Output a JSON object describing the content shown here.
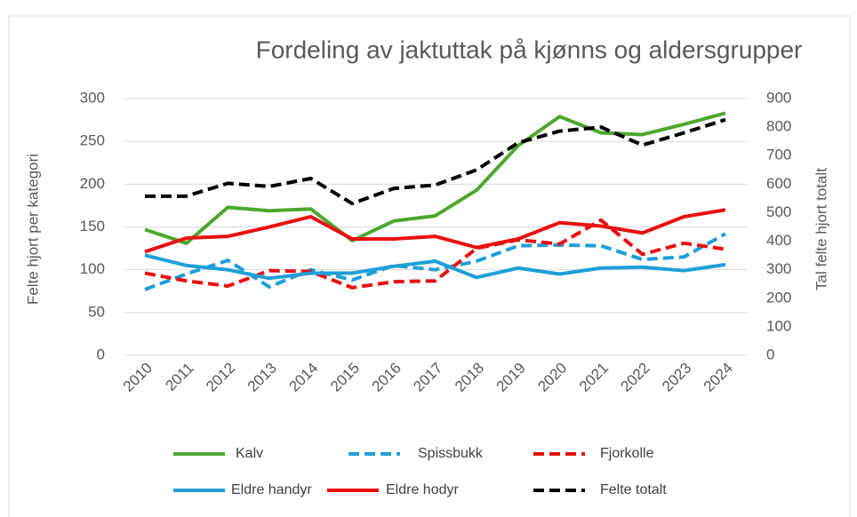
{
  "chart_data": {
    "type": "line",
    "title": "Fordeling av jaktuttak på kjønns og aldersgrupper",
    "y_label": "Felte hjort per kategori",
    "y2_label": "Tal felte hjort totalt",
    "categories": [
      "2010",
      "2011",
      "2012",
      "2013",
      "2014",
      "2015",
      "2016",
      "2017",
      "2018",
      "2019",
      "2020",
      "2021",
      "2022",
      "2023",
      "2024"
    ],
    "ylim": [
      0,
      300
    ],
    "yticks": [
      0,
      50,
      100,
      150,
      200,
      250,
      300
    ],
    "y2lim": [
      0,
      900
    ],
    "y2ticks": [
      0,
      100,
      200,
      300,
      400,
      500,
      600,
      700,
      800,
      900
    ],
    "grid": true,
    "legend": "bottom",
    "series": [
      {
        "name": "Kalv",
        "color": "#4ea72e",
        "dash": false,
        "values": [
          147,
          131,
          173,
          169,
          171,
          134,
          157,
          163,
          193,
          245,
          279,
          260,
          258,
          270,
          283
        ]
      },
      {
        "name": "Spissbukk",
        "color": "#1e9fd8",
        "dash": true,
        "values": [
          77,
          95,
          111,
          80,
          100,
          88,
          105,
          100,
          110,
          128,
          129,
          128,
          112,
          115,
          142
        ]
      },
      {
        "name": "Fjorkolle",
        "color": "#e81010",
        "dash": true,
        "values": [
          96,
          87,
          81,
          99,
          98,
          79,
          86,
          87,
          125,
          135,
          130,
          158,
          118,
          131,
          124
        ]
      },
      {
        "name": "Eldre handyr",
        "color": "#1e9fd8",
        "dash": false,
        "values": [
          117,
          105,
          100,
          90,
          96,
          96,
          104,
          110,
          91,
          102,
          95,
          102,
          103,
          99,
          106
        ]
      },
      {
        "name": "Eldre hodyr",
        "color": "#e81010",
        "dash": false,
        "values": [
          121,
          137,
          139,
          150,
          162,
          136,
          136,
          139,
          126,
          136,
          155,
          151,
          143,
          162,
          170
        ]
      },
      {
        "name": "Felte totalt",
        "color": "#000000",
        "dash": true,
        "axis": "y2",
        "values": [
          558,
          558,
          603,
          592,
          620,
          532,
          585,
          597,
          650,
          745,
          786,
          800,
          737,
          780,
          826
        ]
      }
    ]
  }
}
